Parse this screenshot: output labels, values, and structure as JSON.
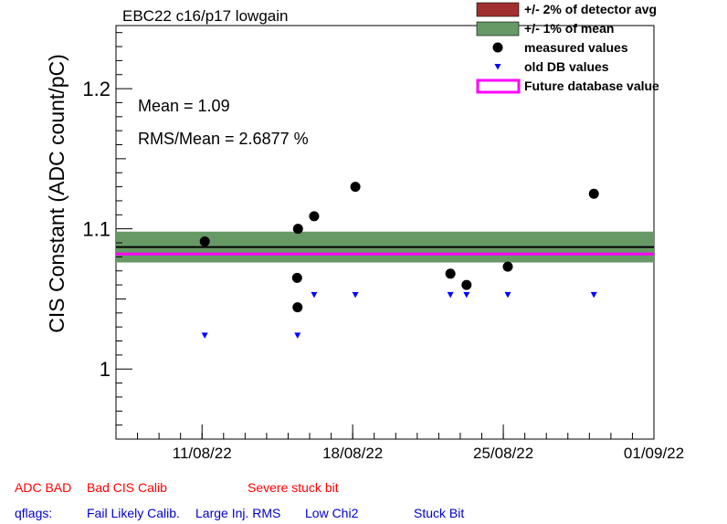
{
  "chart_data": {
    "type": "scatter",
    "title": "EBC22 c16/p17 lowgain",
    "ylabel": "CIS Constant (ADC count/pC)",
    "xlabel": "",
    "x_range": [
      "2022-08-07",
      "2022-09-01"
    ],
    "ylim": [
      0.95,
      1.245
    ],
    "y_ticks": [
      {
        "value": 1.0,
        "label": "1"
      },
      {
        "value": 1.1,
        "label": "1.1"
      },
      {
        "value": 1.2,
        "label": "1.2"
      }
    ],
    "x_ticks": [
      {
        "date": "2022-08-11",
        "label": "11/08/22"
      },
      {
        "date": "2022-08-18",
        "label": "18/08/22"
      },
      {
        "date": "2022-08-25",
        "label": "25/08/22"
      },
      {
        "date": "2022-09-01",
        "label": "01/09/22"
      }
    ],
    "stats": {
      "mean_text": "Mean = 1.09",
      "rms_text": "RMS/Mean = 2.6877 %"
    },
    "mean_value": 1.087,
    "future_db_value": 1.082,
    "band_1pct": [
      1.076,
      1.098
    ],
    "series": [
      {
        "name": "measured values",
        "color": "#000000",
        "points": [
          {
            "x": "2022-08-11 03:00",
            "y": 1.091
          },
          {
            "x": "2022-08-15 10:00",
            "y": 1.065
          },
          {
            "x": "2022-08-15 10:30",
            "y": 1.044
          },
          {
            "x": "2022-08-15 11:00",
            "y": 1.1
          },
          {
            "x": "2022-08-16 05:00",
            "y": 1.109
          },
          {
            "x": "2022-08-18 03:00",
            "y": 1.13
          },
          {
            "x": "2022-08-22 13:00",
            "y": 1.068
          },
          {
            "x": "2022-08-23 07:00",
            "y": 1.06
          },
          {
            "x": "2022-08-25 05:00",
            "y": 1.073
          },
          {
            "x": "2022-08-29 05:00",
            "y": 1.125
          }
        ]
      },
      {
        "name": "old DB values",
        "color": "#0000ff",
        "points": [
          {
            "x": "2022-08-11 03:00",
            "y": 1.024
          },
          {
            "x": "2022-08-15 10:30",
            "y": 1.024
          },
          {
            "x": "2022-08-16 05:00",
            "y": 1.053
          },
          {
            "x": "2022-08-18 03:00",
            "y": 1.053
          },
          {
            "x": "2022-08-22 13:00",
            "y": 1.053
          },
          {
            "x": "2022-08-23 07:00",
            "y": 1.053
          },
          {
            "x": "2022-08-25 05:00",
            "y": 1.053
          },
          {
            "x": "2022-08-29 05:00",
            "y": 1.053
          }
        ]
      }
    ],
    "legend": {
      "placement": "top-right",
      "entries": [
        {
          "label": "+/- 2% of detector avg",
          "color": "#a03030",
          "kind": "box"
        },
        {
          "label": "+/- 1% of mean",
          "color": "#669966",
          "kind": "box"
        },
        {
          "label": "measured values",
          "color": "#000000",
          "kind": "dot"
        },
        {
          "label": "old DB values",
          "color": "#0000ff",
          "kind": "triangle"
        },
        {
          "label": "Future database value",
          "color": "#ff00ff",
          "kind": "outline"
        }
      ]
    }
  },
  "flags": {
    "row1": [
      {
        "text": "ADC BAD",
        "color": "#ff0000"
      },
      {
        "text": "Bad CIS Calib",
        "color": "#ff0000"
      },
      {
        "text": "Severe stuck bit",
        "color": "#ff0000"
      }
    ],
    "row2": [
      {
        "text": "qflags:",
        "color": "#0000cc"
      },
      {
        "text": "Fail Likely Calib.",
        "color": "#0000cc"
      },
      {
        "text": "Large Inj. RMS",
        "color": "#0000cc"
      },
      {
        "text": "Low Chi2",
        "color": "#0000cc"
      },
      {
        "text": "Stuck Bit",
        "color": "#0000cc"
      }
    ]
  }
}
